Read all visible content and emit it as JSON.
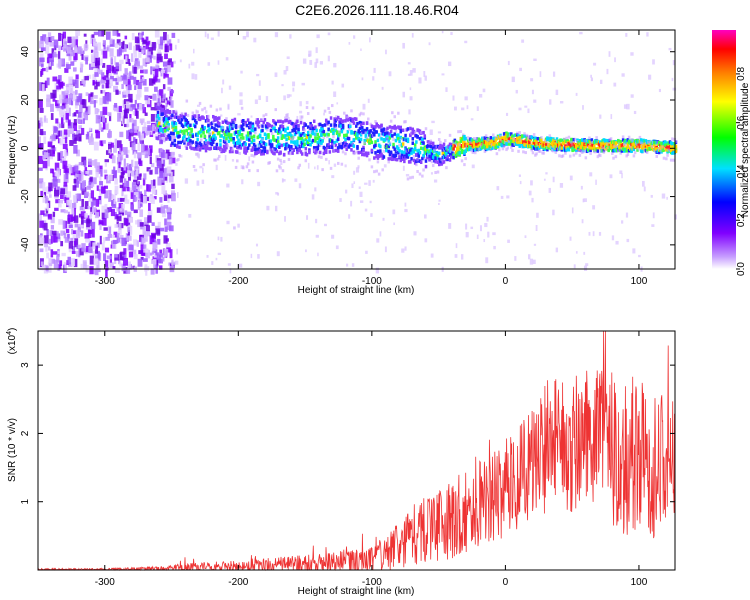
{
  "title": "C2E6.2026.111.18.46.R04",
  "chart_data": [
    {
      "type": "heatmap",
      "xlabel": "Height of straight line (km)",
      "ylabel": "Frequency (Hz)",
      "xlim": [
        -350,
        127
      ],
      "ylim": [
        -50,
        49
      ],
      "xticks": [
        -300,
        -200,
        -100,
        0,
        100
      ],
      "yticks": [
        -40,
        -20,
        0,
        20,
        40
      ],
      "colorbar": {
        "label": "Normalized spectral amplitude",
        "range": [
          0,
          0.98
        ],
        "ticks": [
          0.0,
          0.2,
          0.4,
          0.6,
          0.8
        ],
        "colors": [
          "#ffffff",
          "#c8a0ff",
          "#8000ff",
          "#0000ff",
          "#00e0ff",
          "#00ff00",
          "#ffff00",
          "#ff8000",
          "#ff0000",
          "#ff00c0"
        ]
      },
      "ridge": [
        {
          "x": -350,
          "y": 8
        },
        {
          "x": -260,
          "y": 10
        },
        {
          "x": -245,
          "y": 7
        },
        {
          "x": -200,
          "y": 5
        },
        {
          "x": -150,
          "y": 4
        },
        {
          "x": -120,
          "y": 6
        },
        {
          "x": -100,
          "y": 3
        },
        {
          "x": -70,
          "y": 1
        },
        {
          "x": -50,
          "y": -3
        },
        {
          "x": -35,
          "y": 1
        },
        {
          "x": -10,
          "y": 2
        },
        {
          "x": 0,
          "y": 4
        },
        {
          "x": 20,
          "y": 2
        },
        {
          "x": 60,
          "y": 1
        },
        {
          "x": 100,
          "y": 1
        },
        {
          "x": 127,
          "y": 0
        }
      ]
    },
    {
      "type": "line",
      "xlabel": "Height of straight line (km)",
      "ylabel": "SNR (10 * v/v)",
      "yscale_label": "(x10",
      "yscale_exp": "4",
      "xlim": [
        -350,
        127
      ],
      "ylim": [
        0,
        3.5
      ],
      "xticks": [
        -300,
        -200,
        -100,
        0,
        100
      ],
      "yticks": [
        1,
        2,
        3
      ],
      "color": "#ee3333",
      "series": [
        {
          "x": [
            -350,
            -300,
            -260,
            -240,
            -200,
            -160,
            -130,
            -100,
            -80,
            -65,
            -50,
            -40,
            -30,
            -20,
            -10,
            0,
            10,
            20,
            30,
            40,
            50,
            60,
            70,
            80,
            90,
            100,
            110,
            120,
            127
          ],
          "y": [
            0.01,
            0.01,
            0.02,
            0.04,
            0.06,
            0.08,
            0.1,
            0.15,
            0.35,
            0.55,
            0.65,
            0.75,
            0.85,
            0.95,
            1.05,
            1.2,
            1.35,
            1.6,
            1.8,
            1.95,
            1.85,
            1.9,
            1.85,
            1.75,
            1.7,
            1.65,
            1.6,
            1.55,
            1.5
          ],
          "peak_amplitude": [
            0.02,
            0.02,
            0.05,
            0.1,
            0.12,
            0.2,
            0.25,
            0.3,
            0.55,
            0.75,
            0.8,
            0.9,
            0.95,
            1.0,
            1.0,
            1.1,
            1.2,
            1.3,
            1.5,
            1.5,
            1.6,
            1.6,
            1.7,
            1.8,
            1.85,
            1.8,
            1.75,
            1.7,
            1.6
          ]
        }
      ]
    }
  ]
}
